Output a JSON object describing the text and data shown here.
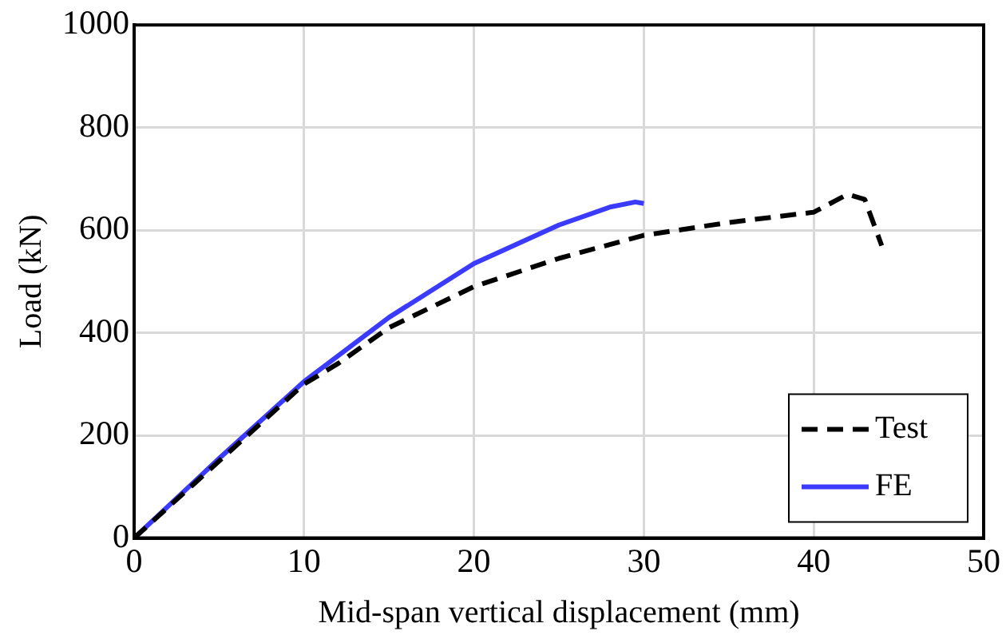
{
  "chart_data": {
    "type": "line",
    "xlabel": "Mid-span vertical displacement (mm)",
    "ylabel": "Load (kN)",
    "xlim": [
      0,
      50
    ],
    "xticks": [
      0,
      10,
      20,
      30,
      40,
      50
    ],
    "ylim": [
      0,
      1000
    ],
    "yticks": [
      0,
      200,
      400,
      600,
      800,
      1000
    ],
    "grid": true,
    "legend": "bottom right",
    "marker": "none",
    "series": [
      {
        "name": "Test",
        "color": "#000000",
        "line_style": "dashed",
        "x": [
          0,
          5,
          10,
          12,
          15,
          20,
          25,
          30,
          35,
          40,
          42,
          43,
          44
        ],
        "values": [
          0,
          150,
          300,
          340,
          410,
          490,
          545,
          590,
          615,
          635,
          670,
          660,
          570
        ]
      },
      {
        "name": "FE",
        "color": "#3b3bff",
        "line_style": "solid",
        "x": [
          0,
          5,
          10,
          15,
          20,
          25,
          28,
          29.5,
          30
        ],
        "values": [
          0,
          155,
          305,
          430,
          535,
          610,
          645,
          655,
          652
        ]
      }
    ]
  }
}
